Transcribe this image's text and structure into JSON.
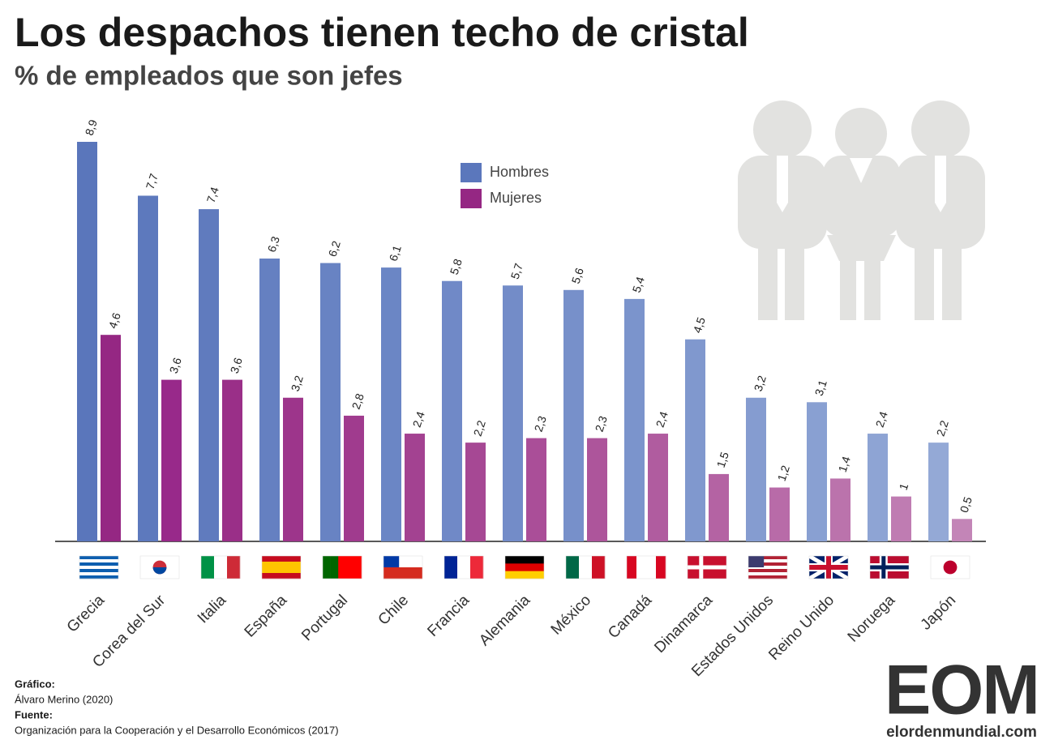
{
  "chart_data": {
    "type": "bar",
    "title": "Los despachos tienen techo de cristal",
    "subtitle": "% de empleados que son jefes",
    "categories": [
      "Grecia",
      "Corea del Sur",
      "Italia",
      "España",
      "Portugal",
      "Chile",
      "Francia",
      "Alemania",
      "México",
      "Canadá",
      "Dinamarca",
      "Estados Unidos",
      "Reino Unido",
      "Noruega",
      "Japón"
    ],
    "series": [
      {
        "name": "Hombres",
        "color": "#5b77bc",
        "colors": [
          "#5a76bb",
          "#5d79bd",
          "#607bbe",
          "#6580c1",
          "#6883c3",
          "#6b86c5",
          "#7089c7",
          "#738cc8",
          "#7790ca",
          "#7b94cc",
          "#8098ce",
          "#859cd0",
          "#89a0d2",
          "#8ea4d4",
          "#94a9d6"
        ],
        "values": [
          8.9,
          7.7,
          7.4,
          6.3,
          6.2,
          6.1,
          5.8,
          5.7,
          5.6,
          5.4,
          4.5,
          3.2,
          3.1,
          2.4,
          2.2
        ],
        "value_labels": [
          "8,9",
          "7,7",
          "7,4",
          "6,3",
          "6,2",
          "6,1",
          "5,8",
          "5,7",
          "5,6",
          "5,4",
          "4,5",
          "3,2",
          "3,1",
          "2,4",
          "2,2"
        ]
      },
      {
        "name": "Mujeres",
        "color": "#952783",
        "colors": [
          "#952783",
          "#98298a",
          "#9a2f88",
          "#9d358b",
          "#a03b8e",
          "#a34291",
          "#a64894",
          "#aa4e98",
          "#ad559b",
          "#b05c9f",
          "#b463a3",
          "#b86ba8",
          "#bb73ac",
          "#bf7cb2",
          "#c385b7"
        ],
        "values": [
          4.6,
          3.6,
          3.6,
          3.2,
          2.8,
          2.4,
          2.2,
          2.3,
          2.3,
          2.4,
          1.5,
          1.2,
          1.4,
          1,
          0.5
        ],
        "value_labels": [
          "4,6",
          "3,6",
          "3,6",
          "3,2",
          "2,8",
          "2,4",
          "2,2",
          "2,3",
          "2,3",
          "2,4",
          "1,5",
          "1,2",
          "1,4",
          "1",
          "0,5"
        ]
      }
    ],
    "ylim": [
      0,
      8.9
    ]
  },
  "footer": {
    "chart_label": "Gráfico:",
    "author": "Álvaro Merino (2020)",
    "source_label": "Fuente:",
    "source": "Organización para la Cooperación y el Desarrollo Económicos (2017)"
  },
  "logo": {
    "mark": "EOM",
    "site": "elordenmundial.com"
  }
}
